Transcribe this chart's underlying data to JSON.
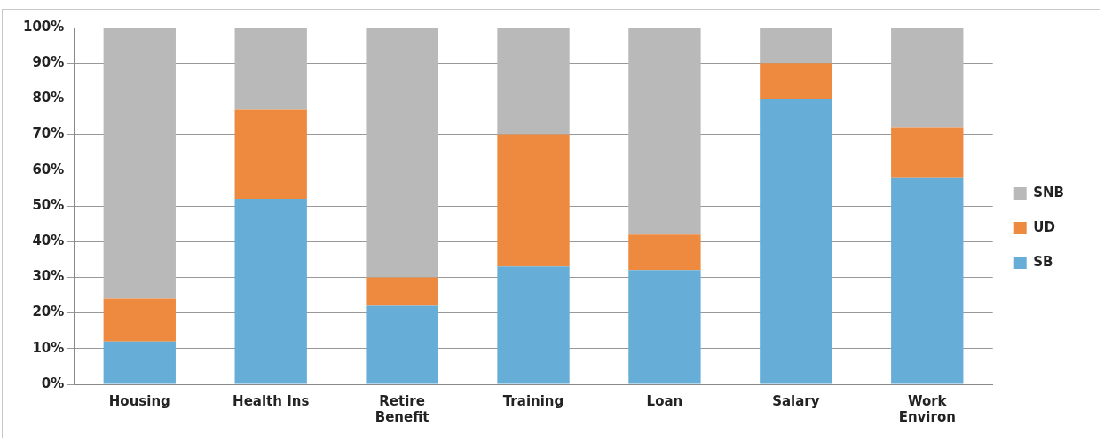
{
  "chart_data": {
    "type": "bar",
    "stacked": true,
    "categories": [
      "Housing",
      "Health Ins",
      "Retire Benefit",
      "Training",
      "Loan",
      "Salary",
      "Work Environ"
    ],
    "series": [
      {
        "name": "SB",
        "color": "#66aed7",
        "values": [
          12,
          52,
          22,
          33,
          32,
          80,
          58
        ]
      },
      {
        "name": "UD",
        "color": "#ed8a3f",
        "values": [
          12,
          25,
          8,
          37,
          10,
          10,
          14
        ]
      },
      {
        "name": "SNB",
        "color": "#b9b9b9",
        "values": [
          76,
          23,
          70,
          30,
          58,
          10,
          28
        ]
      }
    ],
    "ylim": [
      0,
      100
    ],
    "yticks": [
      {
        "value": 0,
        "label": "0%"
      },
      {
        "value": 10,
        "label": "10%"
      },
      {
        "value": 20,
        "label": "20%"
      },
      {
        "value": 30,
        "label": "30%"
      },
      {
        "value": 40,
        "label": "40%"
      },
      {
        "value": 50,
        "label": "50%"
      },
      {
        "value": 60,
        "label": "60%"
      },
      {
        "value": 70,
        "label": "70%"
      },
      {
        "value": 80,
        "label": "80%"
      },
      {
        "value": 90,
        "label": "90%"
      },
      {
        "value": 100,
        "label": "100%"
      }
    ],
    "grid": "y",
    "legend": "right"
  }
}
